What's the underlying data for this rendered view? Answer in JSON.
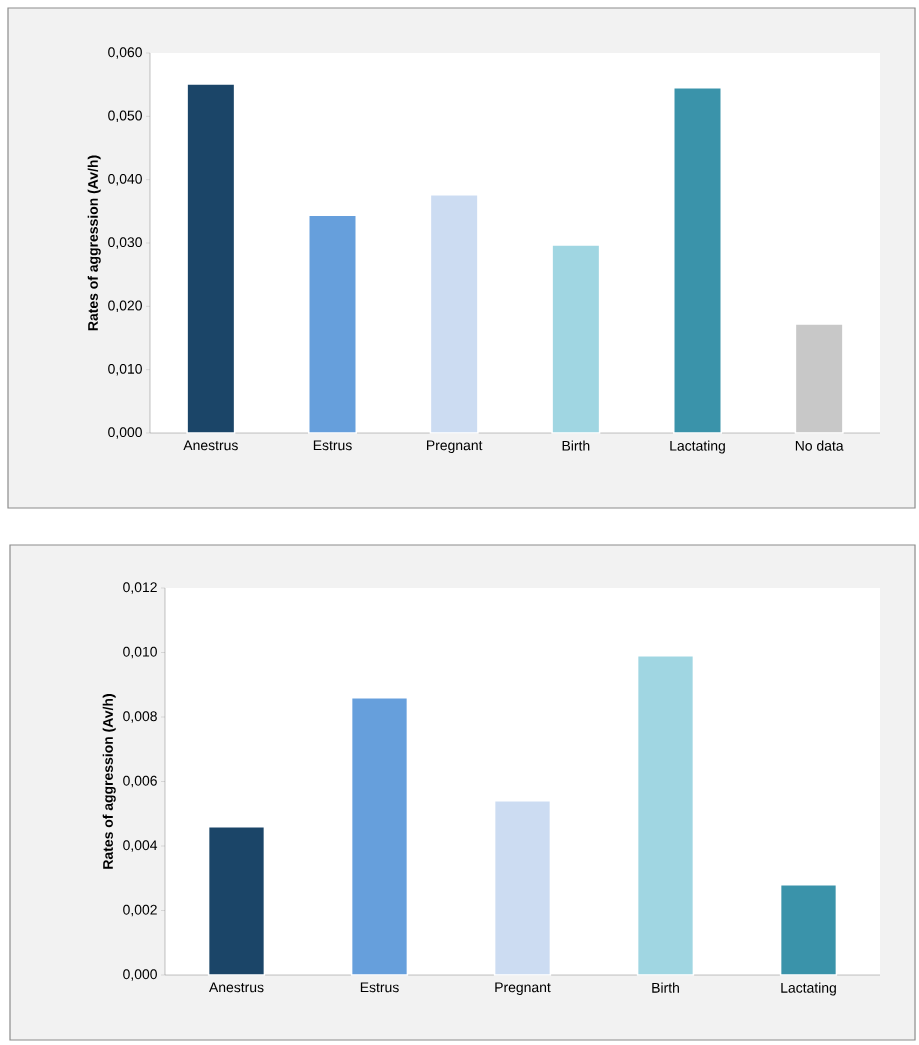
{
  "chart_data": [
    {
      "type": "bar",
      "ylabel": "Rates of aggression (Av/h)",
      "categories": [
        "Anestrus",
        "Estrus",
        "Pregnant",
        "Birth",
        "Lactating",
        "No data"
      ],
      "values": [
        0.0551,
        0.0344,
        0.0376,
        0.0297,
        0.0545,
        0.0172
      ],
      "colors": [
        "#1b4568",
        "#669fdc",
        "#ccdcf2",
        "#a0d6e2",
        "#3a93aa",
        "#c8c8c8"
      ],
      "ylim": [
        0,
        0.06
      ],
      "yticks": [
        {
          "value": 0,
          "label": "0,000"
        },
        {
          "value": 0.01,
          "label": "0,010"
        },
        {
          "value": 0.02,
          "label": "0,020"
        },
        {
          "value": 0.03,
          "label": "0,030"
        },
        {
          "value": 0.04,
          "label": "0,040"
        },
        {
          "value": 0.05,
          "label": "0,050"
        },
        {
          "value": 0.06,
          "label": "0,060"
        }
      ]
    },
    {
      "type": "bar",
      "ylabel": "Rates of aggression (Av/h)",
      "categories": [
        "Anestrus",
        "Estrus",
        "Pregnant",
        "Birth",
        "Lactating"
      ],
      "values": [
        0.0046,
        0.0086,
        0.0054,
        0.0099,
        0.0028
      ],
      "colors": [
        "#1b4568",
        "#669fdc",
        "#ccdcf2",
        "#a0d6e2",
        "#3a93aa"
      ],
      "ylim": [
        0,
        0.012
      ],
      "yticks": [
        {
          "value": 0,
          "label": "0,000"
        },
        {
          "value": 0.002,
          "label": "0,002"
        },
        {
          "value": 0.004,
          "label": "0,004"
        },
        {
          "value": 0.006,
          "label": "0,006"
        },
        {
          "value": 0.008,
          "label": "0,008"
        },
        {
          "value": 0.01,
          "label": "0,010"
        },
        {
          "value": 0.012,
          "label": "0,012"
        }
      ]
    }
  ]
}
